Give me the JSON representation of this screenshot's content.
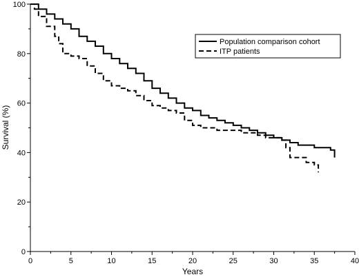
{
  "chart_data": {
    "type": "line",
    "title": "",
    "xlabel": "Years",
    "ylabel": "Survival (%)",
    "xlim": [
      0,
      40
    ],
    "ylim": [
      0,
      100
    ],
    "x_ticks": [
      0,
      5,
      10,
      15,
      20,
      25,
      30,
      35,
      40
    ],
    "y_ticks": [
      0,
      20,
      40,
      60,
      80,
      100
    ],
    "grid": false,
    "legend": "top-right",
    "series": [
      {
        "name": "Population comparison cohort",
        "style": "solid",
        "color": "#000000",
        "points": [
          [
            0,
            100
          ],
          [
            1,
            98
          ],
          [
            2,
            96
          ],
          [
            3,
            94
          ],
          [
            4,
            92
          ],
          [
            5,
            90
          ],
          [
            6,
            87
          ],
          [
            7,
            85
          ],
          [
            8,
            83
          ],
          [
            9,
            80
          ],
          [
            10,
            78
          ],
          [
            11,
            76
          ],
          [
            12,
            74
          ],
          [
            13,
            72
          ],
          [
            14,
            69
          ],
          [
            15,
            66
          ],
          [
            16,
            64
          ],
          [
            17,
            62
          ],
          [
            18,
            60
          ],
          [
            19,
            58
          ],
          [
            20,
            57
          ],
          [
            21,
            55
          ],
          [
            22,
            54
          ],
          [
            23,
            53
          ],
          [
            24,
            52
          ],
          [
            25,
            51
          ],
          [
            26,
            50
          ],
          [
            27,
            49
          ],
          [
            28,
            48
          ],
          [
            29,
            47
          ],
          [
            30,
            46
          ],
          [
            31,
            45
          ],
          [
            32,
            44
          ],
          [
            33,
            43
          ],
          [
            34,
            43
          ],
          [
            35,
            42
          ],
          [
            36,
            42
          ],
          [
            37,
            41
          ],
          [
            37.5,
            40
          ],
          [
            37.5,
            38
          ]
        ]
      },
      {
        "name": "ITP patients",
        "style": "dashed",
        "color": "#000000",
        "points": [
          [
            0,
            100
          ],
          [
            0.5,
            98
          ],
          [
            1,
            95
          ],
          [
            2,
            91
          ],
          [
            3,
            87
          ],
          [
            3.5,
            84
          ],
          [
            4,
            80
          ],
          [
            5,
            79
          ],
          [
            6,
            78
          ],
          [
            7,
            75
          ],
          [
            8,
            72
          ],
          [
            9,
            69
          ],
          [
            10,
            67
          ],
          [
            11,
            66
          ],
          [
            12,
            65
          ],
          [
            13,
            63
          ],
          [
            14,
            61
          ],
          [
            15,
            59
          ],
          [
            16,
            58
          ],
          [
            17,
            57
          ],
          [
            18,
            56
          ],
          [
            19,
            53
          ],
          [
            20,
            51
          ],
          [
            21,
            50
          ],
          [
            22,
            50
          ],
          [
            23,
            49
          ],
          [
            24,
            49
          ],
          [
            25,
            49
          ],
          [
            26,
            48
          ],
          [
            27,
            48
          ],
          [
            28,
            47
          ],
          [
            29,
            46
          ],
          [
            30,
            46
          ],
          [
            31,
            45
          ],
          [
            31.5,
            42
          ],
          [
            32,
            38
          ],
          [
            33,
            38
          ],
          [
            34,
            36
          ],
          [
            35,
            35
          ],
          [
            35.5,
            32
          ]
        ]
      }
    ]
  }
}
